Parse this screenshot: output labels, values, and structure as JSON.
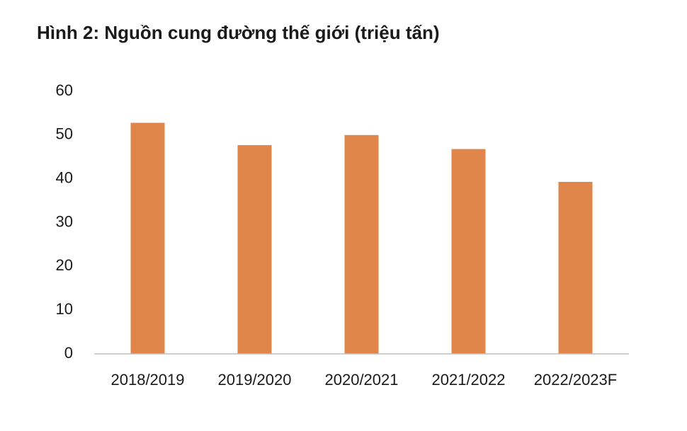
{
  "chart_data": {
    "type": "bar",
    "title": "Hình 2: Nguồn cung đường thế giới (triệu tấn)",
    "categories": [
      "2018/2019",
      "2019/2020",
      "2020/2021",
      "2021/2022",
      "2022/2023F"
    ],
    "values": [
      52.8,
      47.7,
      50.0,
      46.8,
      39.3
    ],
    "color": "#e0864a",
    "ylim": [
      0,
      60
    ],
    "yticks": [
      0,
      10,
      20,
      30,
      40,
      50,
      60
    ],
    "grid": false
  }
}
